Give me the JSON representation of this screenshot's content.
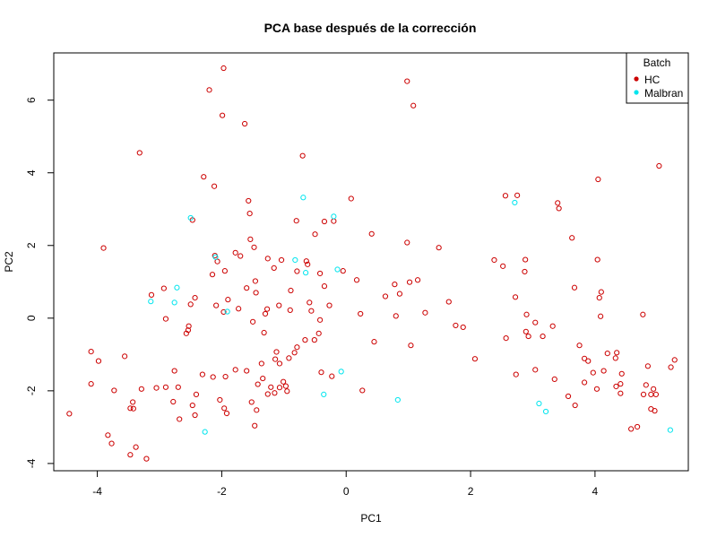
{
  "chart_data": {
    "type": "scatter",
    "title": "PCA base después de la corrección",
    "xlabel": "PC1",
    "ylabel": "PC2",
    "xlim": [
      -4.7,
      5.5
    ],
    "ylim": [
      -4.2,
      7.3
    ],
    "x_ticks": [
      -4,
      -2,
      0,
      2,
      4
    ],
    "y_ticks": [
      -4,
      -2,
      0,
      2,
      4,
      6
    ],
    "grid": false,
    "legend": {
      "title": "Batch",
      "position": "top-right",
      "entries": [
        {
          "name": "HC",
          "color": "#cc0000"
        },
        {
          "name": "Malbran",
          "color": "#00e5ee"
        }
      ]
    },
    "series": [
      {
        "name": "HC",
        "color": "#cc0000",
        "points": [
          [
            -1.97,
            6.88
          ],
          [
            -2.2,
            6.28
          ],
          [
            -1.99,
            5.58
          ],
          [
            -1.63,
            5.35
          ],
          [
            0.98,
            6.52
          ],
          [
            1.08,
            5.85
          ],
          [
            5.03,
            4.19
          ],
          [
            -3.32,
            4.55
          ],
          [
            -0.7,
            4.47
          ],
          [
            -2.29,
            3.89
          ],
          [
            -2.12,
            3.63
          ],
          [
            -1.57,
            3.23
          ],
          [
            0.08,
            3.29
          ],
          [
            -1.55,
            2.88
          ],
          [
            -3.9,
            1.93
          ],
          [
            -2.47,
            2.7
          ],
          [
            -0.8,
            2.68
          ],
          [
            -0.35,
            2.66
          ],
          [
            -0.2,
            2.67
          ],
          [
            -0.5,
            2.31
          ],
          [
            0.41,
            2.32
          ],
          [
            0.98,
            2.08
          ],
          [
            1.49,
            1.94
          ],
          [
            2.56,
            3.37
          ],
          [
            2.75,
            3.38
          ],
          [
            3.4,
            3.17
          ],
          [
            3.42,
            3.02
          ],
          [
            4.05,
            3.82
          ],
          [
            3.63,
            2.21
          ],
          [
            2.38,
            1.6
          ],
          [
            2.52,
            1.43
          ],
          [
            2.88,
            1.61
          ],
          [
            2.87,
            1.28
          ],
          [
            4.04,
            1.61
          ],
          [
            -2.11,
            1.72
          ],
          [
            -1.78,
            1.8
          ],
          [
            -1.7,
            1.71
          ],
          [
            -1.54,
            2.17
          ],
          [
            -1.48,
            1.95
          ],
          [
            -1.26,
            1.64
          ],
          [
            -1.04,
            1.6
          ],
          [
            -2.07,
            1.56
          ],
          [
            -2.15,
            1.2
          ],
          [
            -1.95,
            1.3
          ],
          [
            -1.46,
            1.02
          ],
          [
            -1.16,
            1.38
          ],
          [
            -0.64,
            1.57
          ],
          [
            -0.62,
            1.48
          ],
          [
            -0.79,
            1.29
          ],
          [
            -0.42,
            1.23
          ],
          [
            -0.35,
            0.88
          ],
          [
            0.17,
            1.05
          ],
          [
            -2.93,
            0.82
          ],
          [
            -3.13,
            0.64
          ],
          [
            -1.6,
            0.83
          ],
          [
            -1.9,
            0.51
          ],
          [
            -1.45,
            0.7
          ],
          [
            -0.89,
            0.76
          ],
          [
            -0.59,
            0.43
          ],
          [
            -0.27,
            0.35
          ],
          [
            -1.08,
            0.35
          ],
          [
            -2.43,
            0.56
          ],
          [
            -2.5,
            0.38
          ],
          [
            -2.09,
            0.35
          ],
          [
            -1.97,
            0.17
          ],
          [
            -1.73,
            0.26
          ],
          [
            -1.3,
            0.12
          ],
          [
            -1.27,
            0.25
          ],
          [
            -0.9,
            0.22
          ],
          [
            -0.56,
            0.2
          ],
          [
            -0.05,
            1.3
          ],
          [
            0.23,
            0.12
          ],
          [
            -0.42,
            -0.05
          ],
          [
            0.63,
            0.6
          ],
          [
            0.86,
            0.67
          ],
          [
            0.78,
            0.93
          ],
          [
            1.02,
            0.99
          ],
          [
            1.15,
            1.05
          ],
          [
            0.8,
            0.06
          ],
          [
            1.27,
            0.15
          ],
          [
            1.65,
            0.45
          ],
          [
            1.76,
            -0.2
          ],
          [
            1.88,
            -0.25
          ],
          [
            2.72,
            0.58
          ],
          [
            2.9,
            0.1
          ],
          [
            3.04,
            -0.12
          ],
          [
            3.32,
            -0.22
          ],
          [
            3.75,
            -0.75
          ],
          [
            2.57,
            -0.55
          ],
          [
            2.89,
            -0.37
          ],
          [
            2.93,
            -0.5
          ],
          [
            3.16,
            -0.5
          ],
          [
            3.67,
            0.84
          ],
          [
            4.07,
            0.56
          ],
          [
            4.1,
            0.72
          ],
          [
            4.09,
            0.05
          ],
          [
            4.77,
            0.1
          ],
          [
            -2.9,
            -0.02
          ],
          [
            -2.57,
            -0.42
          ],
          [
            -2.53,
            -0.22
          ],
          [
            -2.54,
            -0.33
          ],
          [
            -1.32,
            -0.4
          ],
          [
            -1.5,
            -0.1
          ],
          [
            -0.44,
            -0.42
          ],
          [
            -0.51,
            -0.6
          ],
          [
            -0.66,
            -0.6
          ],
          [
            -0.79,
            -0.8
          ],
          [
            0.45,
            -0.65
          ],
          [
            1.04,
            -0.75
          ],
          [
            -4.1,
            -0.92
          ],
          [
            -3.98,
            -1.18
          ],
          [
            -3.56,
            -1.05
          ],
          [
            -2.31,
            -1.55
          ],
          [
            -2.14,
            -1.62
          ],
          [
            -1.94,
            -1.61
          ],
          [
            -1.78,
            -1.42
          ],
          [
            -1.6,
            -1.45
          ],
          [
            -1.36,
            -1.25
          ],
          [
            -1.14,
            -1.13
          ],
          [
            -1.12,
            -0.93
          ],
          [
            -1.07,
            -1.25
          ],
          [
            -1.01,
            -1.75
          ],
          [
            -0.92,
            -1.1
          ],
          [
            -0.83,
            -0.95
          ],
          [
            -0.4,
            -1.49
          ],
          [
            -0.23,
            -1.6
          ],
          [
            2.07,
            -1.12
          ],
          [
            2.73,
            -1.55
          ],
          [
            3.04,
            -1.42
          ],
          [
            3.89,
            -1.18
          ],
          [
            3.83,
            -1.11
          ],
          [
            4.2,
            -0.97
          ],
          [
            4.33,
            -1.1
          ],
          [
            4.35,
            -0.95
          ],
          [
            4.78,
            -2.1
          ],
          [
            4.94,
            -1.95
          ],
          [
            4.98,
            -2.1
          ],
          [
            5.22,
            -1.35
          ],
          [
            5.28,
            -1.15
          ],
          [
            4.14,
            -1.45
          ],
          [
            3.97,
            -1.5
          ],
          [
            4.43,
            -1.53
          ],
          [
            4.34,
            -1.88
          ],
          [
            4.85,
            -1.32
          ],
          [
            -4.1,
            -1.81
          ],
          [
            -3.73,
            -1.99
          ],
          [
            -3.29,
            -1.95
          ],
          [
            -3.05,
            -1.92
          ],
          [
            -2.9,
            -1.9
          ],
          [
            -2.76,
            -1.45
          ],
          [
            -2.7,
            -1.9
          ],
          [
            -2.78,
            -2.3
          ],
          [
            -2.41,
            -2.1
          ],
          [
            -2.47,
            -2.4
          ],
          [
            -1.96,
            -2.48
          ],
          [
            -1.92,
            -2.62
          ],
          [
            -1.42,
            -1.82
          ],
          [
            -1.34,
            -1.66
          ],
          [
            -1.21,
            -1.9
          ],
          [
            -1.26,
            -2.09
          ],
          [
            -1.15,
            -2.06
          ],
          [
            -1.07,
            -1.91
          ],
          [
            -0.97,
            -1.87
          ],
          [
            -0.95,
            -2.01
          ],
          [
            0.26,
            -1.99
          ],
          [
            -1.44,
            -2.53
          ],
          [
            -1.47,
            -2.96
          ],
          [
            3.35,
            -1.68
          ],
          [
            3.68,
            -2.4
          ],
          [
            3.83,
            -1.77
          ],
          [
            4.03,
            -1.95
          ],
          [
            4.41,
            -1.81
          ],
          [
            4.41,
            -2.07
          ],
          [
            4.82,
            -1.84
          ],
          [
            4.9,
            -2.5
          ],
          [
            4.9,
            -2.1
          ],
          [
            4.96,
            -2.55
          ],
          [
            -3.43,
            -2.31
          ],
          [
            -3.47,
            -2.48
          ],
          [
            -3.42,
            -2.49
          ],
          [
            -2.68,
            -2.78
          ],
          [
            -3.38,
            -3.55
          ],
          [
            -3.47,
            -3.76
          ],
          [
            -3.21,
            -3.87
          ],
          [
            -3.83,
            -3.22
          ],
          [
            -3.77,
            -3.45
          ],
          [
            -4.45,
            -2.63
          ],
          [
            -2.43,
            -2.67
          ],
          [
            -2.03,
            -2.25
          ],
          [
            -1.52,
            -2.31
          ],
          [
            3.57,
            -2.15
          ],
          [
            4.58,
            -3.05
          ],
          [
            4.68,
            -2.99
          ]
        ]
      },
      {
        "name": "Malbran",
        "color": "#00e5ee",
        "points": [
          [
            -2.5,
            2.76
          ],
          [
            -0.69,
            3.32
          ],
          [
            -0.2,
            2.8
          ],
          [
            -0.82,
            1.6
          ],
          [
            -0.65,
            1.25
          ],
          [
            -0.14,
            1.34
          ],
          [
            -2.1,
            1.68
          ],
          [
            -2.72,
            0.84
          ],
          [
            -3.14,
            0.46
          ],
          [
            -2.76,
            0.43
          ],
          [
            -1.91,
            0.18
          ],
          [
            -0.08,
            -1.47
          ],
          [
            -0.36,
            -2.1
          ],
          [
            0.83,
            -2.25
          ],
          [
            2.71,
            3.18
          ],
          [
            3.1,
            -2.35
          ],
          [
            3.21,
            -2.57
          ],
          [
            -2.27,
            -3.13
          ],
          [
            5.21,
            -3.08
          ]
        ]
      }
    ]
  }
}
